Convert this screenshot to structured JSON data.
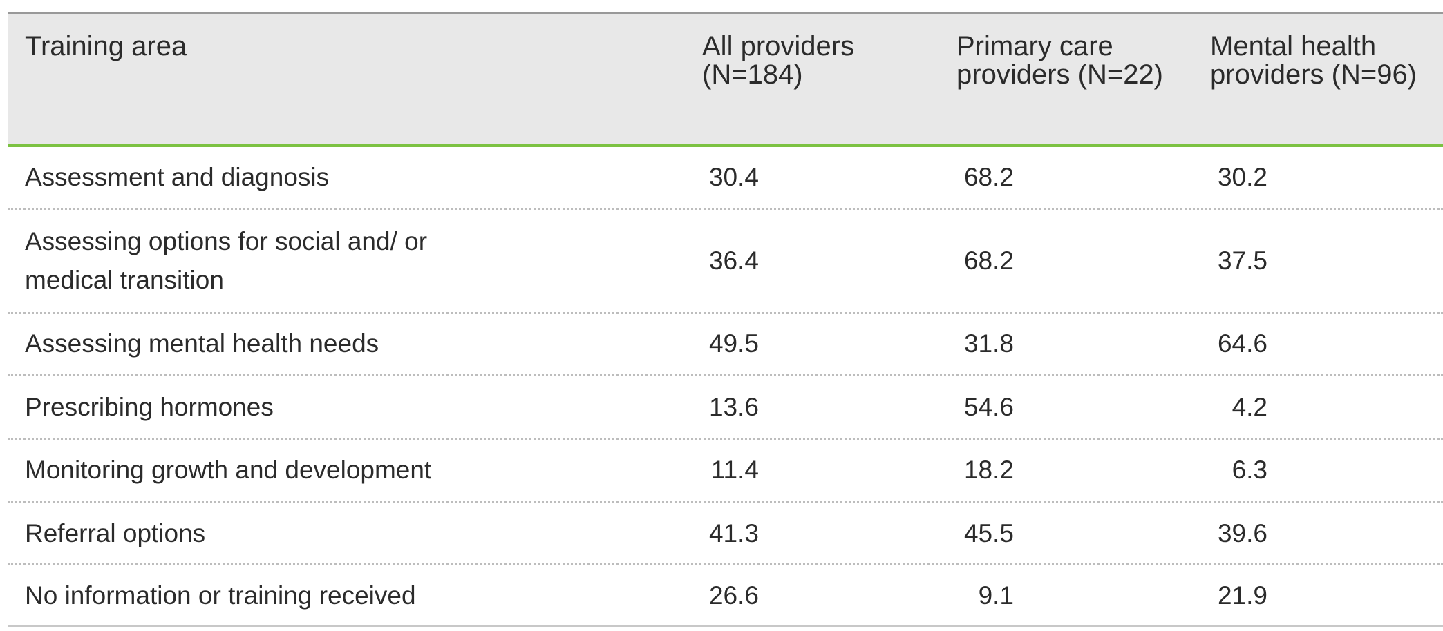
{
  "table": {
    "header": [
      "Training area",
      "All providers (N=184)",
      "Primary care providers (N=22)",
      "Mental health providers (N=96)"
    ],
    "rows": [
      [
        "Assessment and diagnosis",
        30.4,
        68.2,
        30.2
      ],
      [
        "Assessing options for social and/ or medical transition",
        36.4,
        68.2,
        37.5
      ],
      [
        "Assessing mental health needs",
        49.5,
        31.8,
        64.6
      ],
      [
        "Prescribing hormones",
        13.6,
        54.6,
        4.2
      ],
      [
        "Monitoring growth and development",
        11.4,
        18.2,
        6.3
      ],
      [
        "Referral options",
        41.3,
        45.5,
        39.6
      ],
      [
        "No information or training received",
        26.6,
        9.1,
        21.9
      ]
    ]
  }
}
